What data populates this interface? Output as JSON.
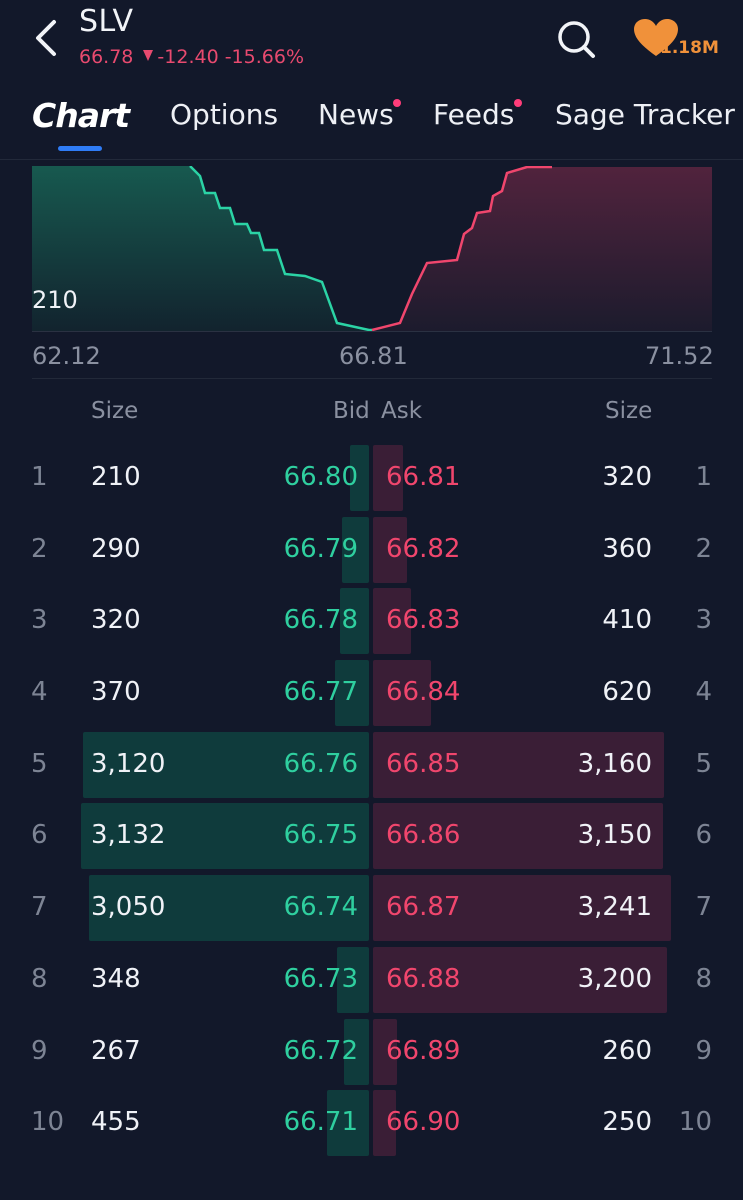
{
  "header": {
    "symbol": "SLV",
    "last_price": "66.78",
    "change": "-12.40",
    "change_pct": "-15.66%",
    "watch_count": "1.18M",
    "icons": [
      "back-arrow-icon",
      "search-icon",
      "heart-icon"
    ],
    "colors": {
      "down": "#e84a6f",
      "bid": "#2fcf9f",
      "ask": "#f0466d",
      "accent": "#2f7cf6",
      "heart": "#f0913a"
    }
  },
  "tabs": [
    {
      "label": "Chart",
      "active": true
    },
    {
      "label": "Options"
    },
    {
      "label": "News",
      "has_dot": true
    },
    {
      "label": "Feeds",
      "has_dot": true
    },
    {
      "label": "Sage Tracker"
    }
  ],
  "depth_chart": {
    "size_label": "210",
    "x_min": "62.12",
    "x_mid": "66.81",
    "x_max": "71.52"
  },
  "order_book": {
    "headers": {
      "bid_size": "Size",
      "bid": "Bid",
      "ask": "Ask",
      "ask_size": "Size"
    },
    "rows": [
      {
        "level": "1",
        "bid_size": "210",
        "bid": "66.80",
        "ask": "66.81",
        "ask_size": "320"
      },
      {
        "level": "2",
        "bid_size": "290",
        "bid": "66.79",
        "ask": "66.82",
        "ask_size": "360"
      },
      {
        "level": "3",
        "bid_size": "320",
        "bid": "66.78",
        "ask": "66.83",
        "ask_size": "410"
      },
      {
        "level": "4",
        "bid_size": "370",
        "bid": "66.77",
        "ask": "66.84",
        "ask_size": "620"
      },
      {
        "level": "5",
        "bid_size": "3,120",
        "bid": "66.76",
        "ask": "66.85",
        "ask_size": "3,160"
      },
      {
        "level": "6",
        "bid_size": "3,132",
        "bid": "66.75",
        "ask": "66.86",
        "ask_size": "3,150"
      },
      {
        "level": "7",
        "bid_size": "3,050",
        "bid": "66.74",
        "ask": "66.87",
        "ask_size": "3,241"
      },
      {
        "level": "8",
        "bid_size": "348",
        "bid": "66.73",
        "ask": "66.88",
        "ask_size": "3,200"
      },
      {
        "level": "9",
        "bid_size": "267",
        "bid": "66.72",
        "ask": "66.89",
        "ask_size": "260"
      },
      {
        "level": "10",
        "bid_size": "455",
        "bid": "66.71",
        "ask": "66.90",
        "ask_size": "250"
      }
    ]
  }
}
